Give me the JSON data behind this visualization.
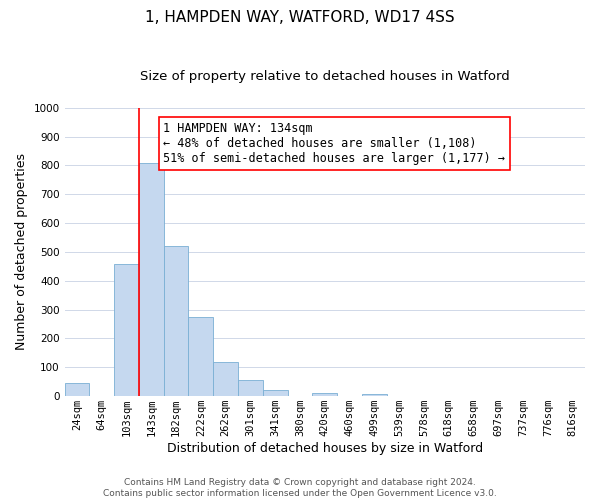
{
  "title": "1, HAMPDEN WAY, WATFORD, WD17 4SS",
  "subtitle": "Size of property relative to detached houses in Watford",
  "xlabel": "Distribution of detached houses by size in Watford",
  "ylabel": "Number of detached properties",
  "bar_labels": [
    "24sqm",
    "64sqm",
    "103sqm",
    "143sqm",
    "182sqm",
    "222sqm",
    "262sqm",
    "301sqm",
    "341sqm",
    "380sqm",
    "420sqm",
    "460sqm",
    "499sqm",
    "539sqm",
    "578sqm",
    "618sqm",
    "658sqm",
    "697sqm",
    "737sqm",
    "776sqm",
    "816sqm"
  ],
  "bar_values": [
    46,
    0,
    460,
    810,
    520,
    275,
    120,
    57,
    22,
    0,
    12,
    0,
    8,
    0,
    0,
    0,
    0,
    0,
    0,
    0,
    0
  ],
  "bar_color": "#c5d8ef",
  "bar_edge_color": "#7aafd4",
  "vline_position": 2.5,
  "vline_color": "red",
  "annotation_text": "1 HAMPDEN WAY: 134sqm\n← 48% of detached houses are smaller (1,108)\n51% of semi-detached houses are larger (1,177) →",
  "annotation_box_color": "white",
  "annotation_box_edge_color": "red",
  "ylim": [
    0,
    1000
  ],
  "yticks": [
    0,
    100,
    200,
    300,
    400,
    500,
    600,
    700,
    800,
    900,
    1000
  ],
  "footer_line1": "Contains HM Land Registry data © Crown copyright and database right 2024.",
  "footer_line2": "Contains public sector information licensed under the Open Government Licence v3.0.",
  "bg_color": "#ffffff",
  "grid_color": "#d0d8e8",
  "title_fontsize": 11,
  "subtitle_fontsize": 9.5,
  "axis_label_fontsize": 9,
  "tick_fontsize": 7.5,
  "annotation_fontsize": 8.5,
  "footer_fontsize": 6.5
}
